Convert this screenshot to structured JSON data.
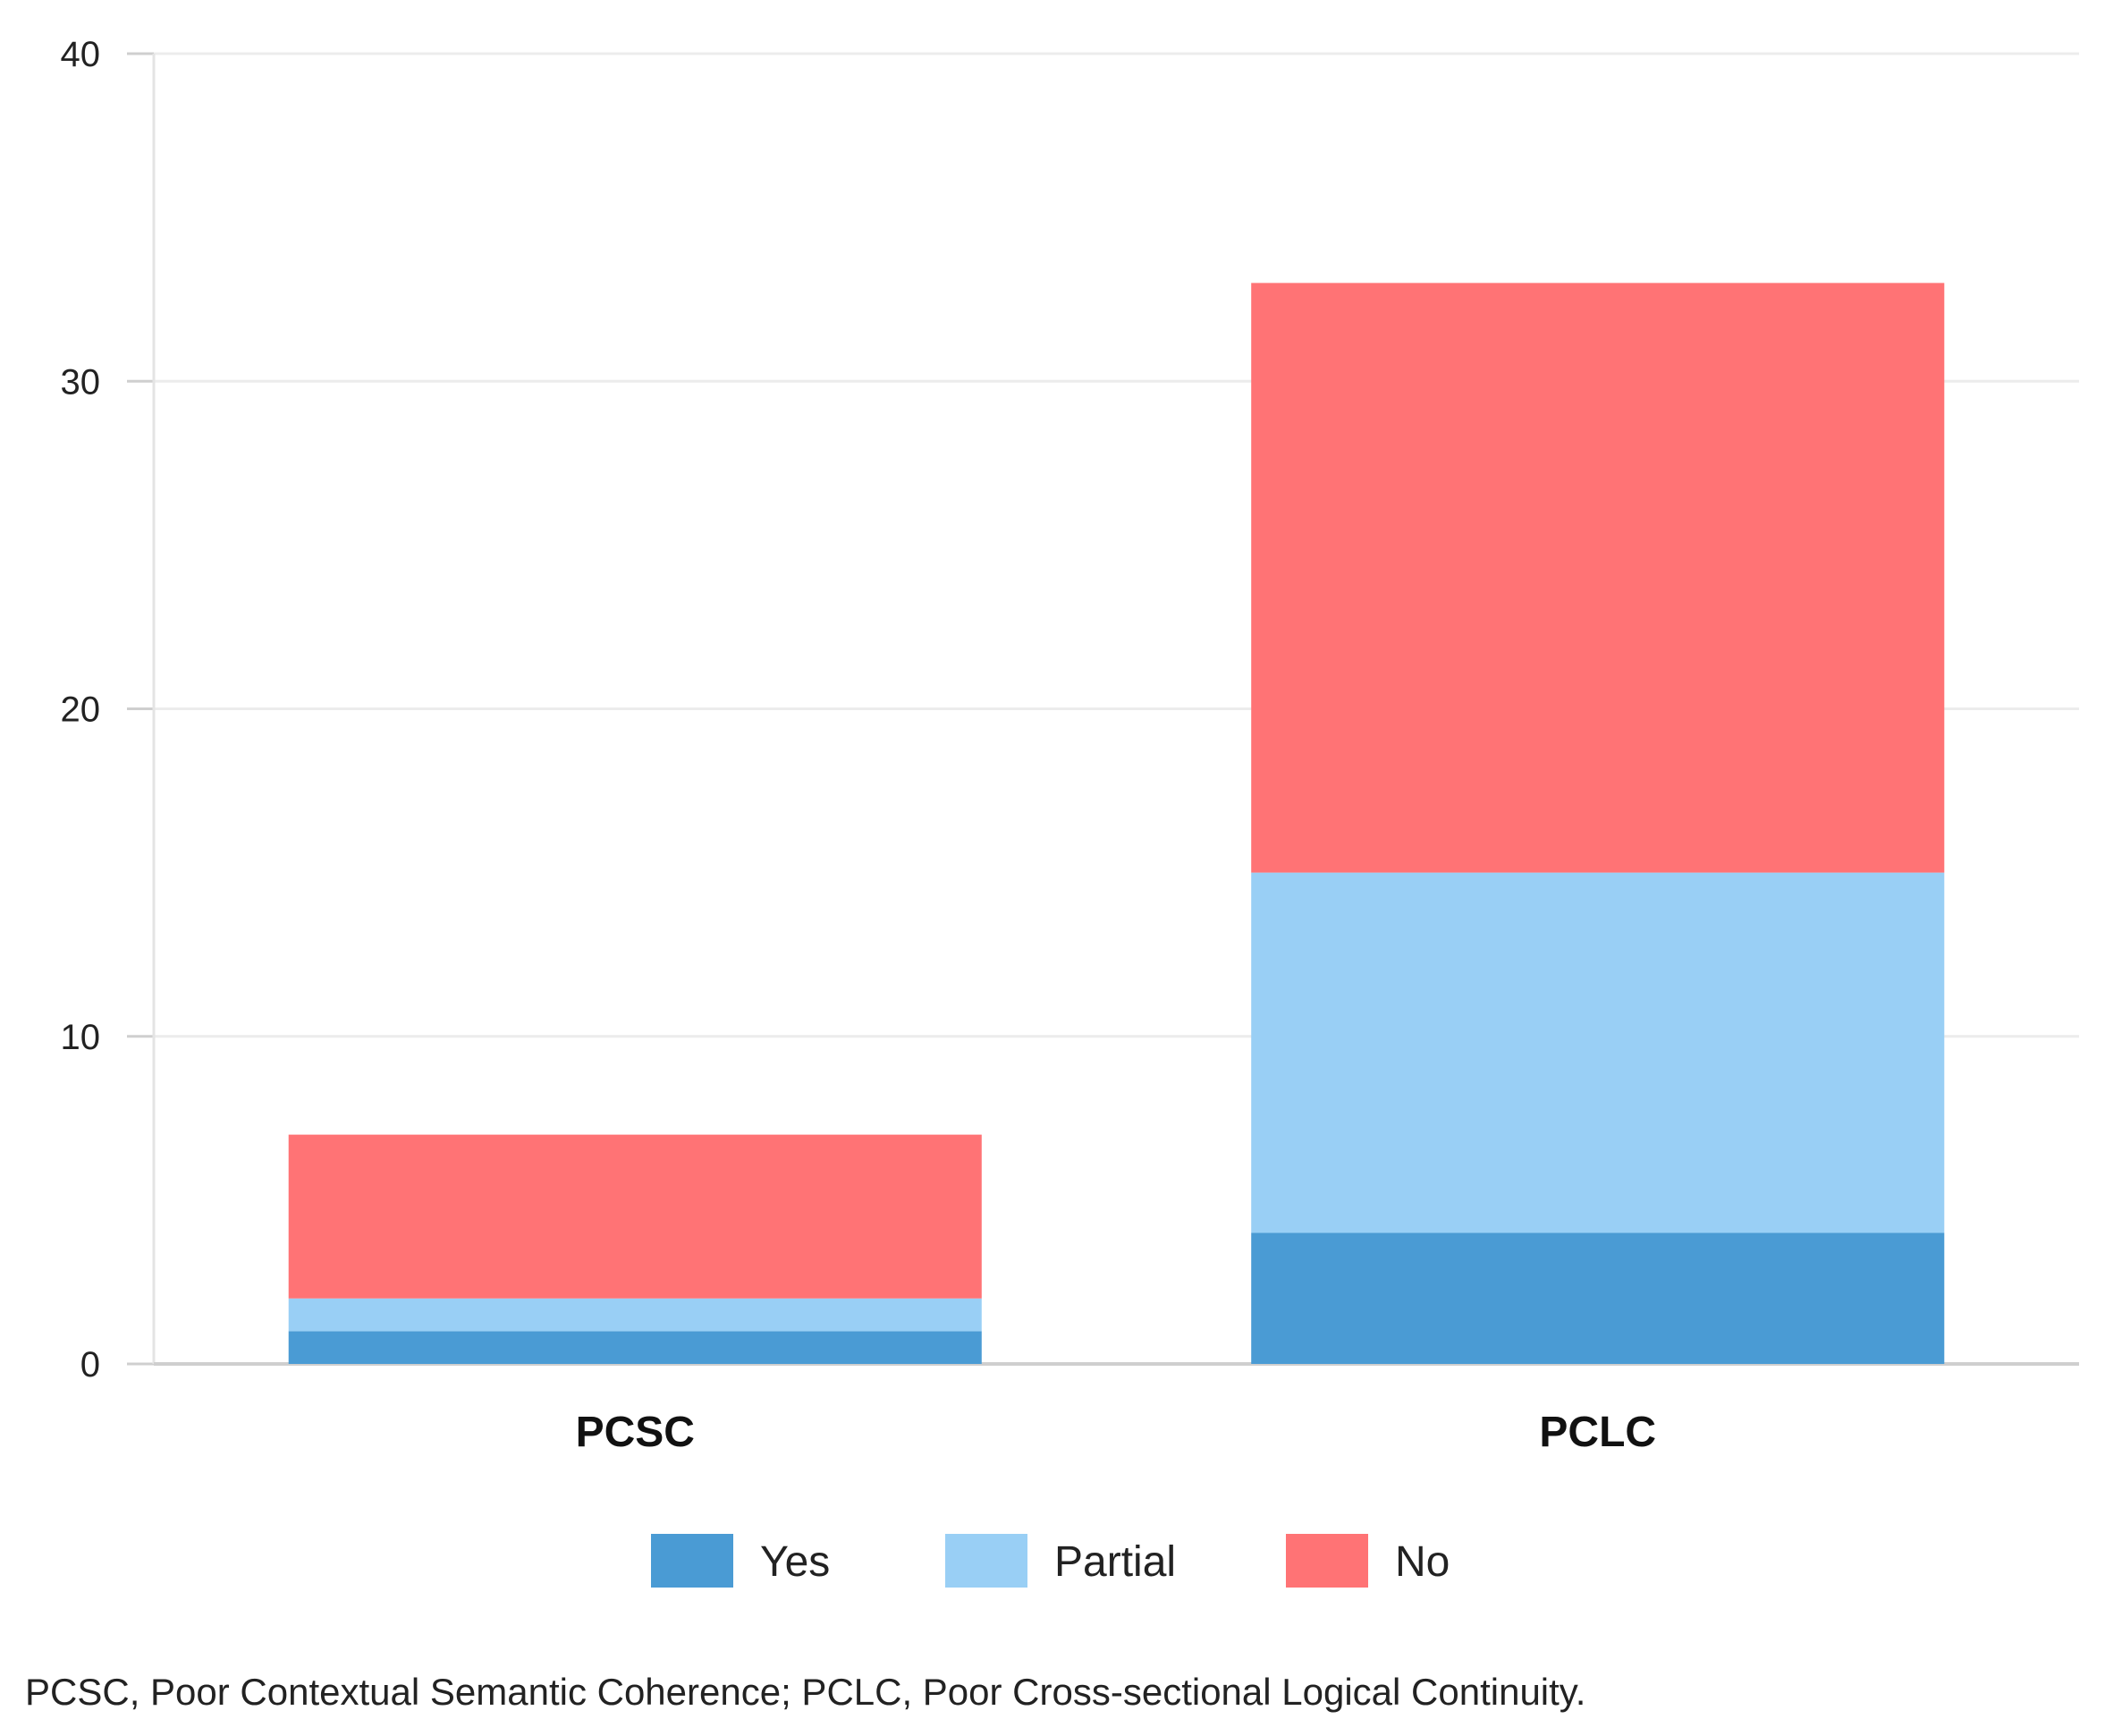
{
  "chart_data": {
    "type": "bar",
    "stacked": true,
    "title": "",
    "xlabel": "",
    "ylabel": "",
    "categories": [
      "PCSC",
      "PCLC"
    ],
    "series": [
      {
        "name": "Yes",
        "values": [
          1,
          4
        ],
        "color": "#4a9bd4"
      },
      {
        "name": "Partial",
        "values": [
          1,
          11
        ],
        "color": "#99cff5"
      },
      {
        "name": "No",
        "values": [
          5,
          18
        ],
        "color": "#ff7375"
      }
    ],
    "ylim": [
      0,
      40
    ],
    "yticks": [
      0,
      10,
      20,
      30,
      40
    ],
    "grid": true,
    "legend_position": "bottom"
  },
  "footnote": "PCSC, Poor Contextual Semantic Coherence; PCLC, Poor Cross-sectional Logical Continuity."
}
